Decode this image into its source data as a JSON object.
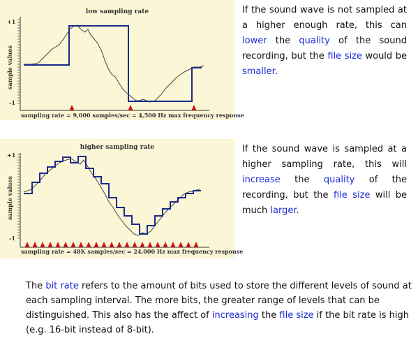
{
  "chart1": {
    "title": "low sampling rate",
    "ylabel": "sample values",
    "ytick_top": "+1",
    "ytick_bottom": "-1",
    "caption": "sampling rate = 9,000 samples/sec = 4,500 Hz max frequency response"
  },
  "chart2": {
    "title": "higher sampling rate",
    "ylabel": "sample values",
    "ytick_top": "+1",
    "ytick_bottom": "-1",
    "caption": "sampling rate = 48K samples/sec = 24,000 Hz max frequency response"
  },
  "para1": {
    "t1": "If the sound wave is not sampled at a higher enough rate, this can ",
    "lower": "lower",
    "t2": " the ",
    "quality": "quality",
    "t3": " of the sound recording, but the ",
    "file_size": "file size",
    "t4": " would be ",
    "smaller": "smaller",
    "t5": "."
  },
  "para2": {
    "t1": "If the sound wave is sampled at a higher sampling rate, this will ",
    "increase": "increase",
    "t2": " the ",
    "quality": "quality",
    "t3": " of the recording, but the ",
    "file_size": "file size",
    "t4": " will be much ",
    "larger": "larger",
    "t5": "."
  },
  "para3": {
    "t1": "The ",
    "bit_rate": "bit rate",
    "t2": " refers to the amount of bits used to store the different levels of sound at each sampling interval.  The more bits, the greater range of levels that can be distinguished.  This also has the affect of ",
    "increasing": "increasing",
    "t3": " the ",
    "file_size": "file size",
    "t4": " if the bit rate is high (e.g. 16-bit instead of 8-bit)."
  },
  "colors": {
    "panel_bg": "#fbf6d6",
    "step_line": "#1c2a8c",
    "wave_line": "#333333",
    "sample_marker": "#cc1111",
    "highlight_text": "#1a2bd6"
  }
}
